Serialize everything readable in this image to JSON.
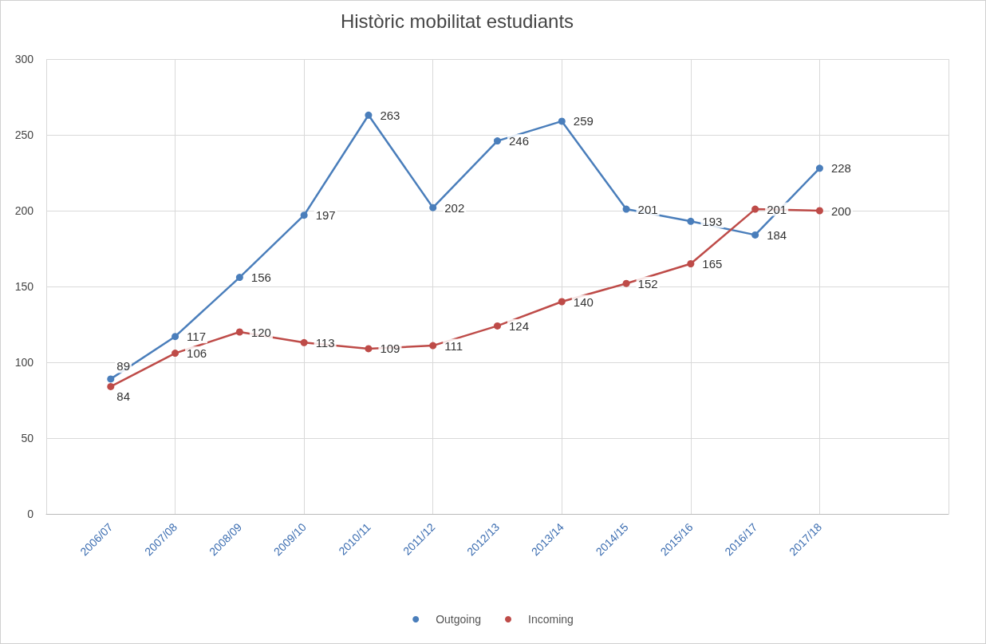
{
  "chart_data": {
    "type": "line",
    "title": "Històric mobilitat estudiants",
    "categories": [
      null,
      "2006/07",
      "2007/08",
      "2008/09",
      "2009/10",
      "2010/11",
      "2011/12",
      "2012/13",
      "2013/14",
      "2014/15",
      "2015/16",
      "2016/17",
      "2017/18",
      null,
      null
    ],
    "series": [
      {
        "name": "Outgoing",
        "color": "#4a7ebb",
        "values": [
          null,
          89,
          117,
          156,
          197,
          263,
          202,
          246,
          259,
          201,
          193,
          184,
          228,
          null,
          null
        ]
      },
      {
        "name": "Incoming",
        "color": "#be4b48",
        "values": [
          null,
          84,
          106,
          120,
          113,
          109,
          111,
          124,
          140,
          152,
          165,
          201,
          200,
          null,
          null
        ]
      }
    ],
    "ylim": [
      0,
      300
    ],
    "yticks": [
      0,
      50,
      100,
      150,
      200,
      250,
      300
    ],
    "grid": true,
    "legend": "bottom",
    "marker": "circle",
    "line_style": "solid",
    "data_labels": true
  }
}
